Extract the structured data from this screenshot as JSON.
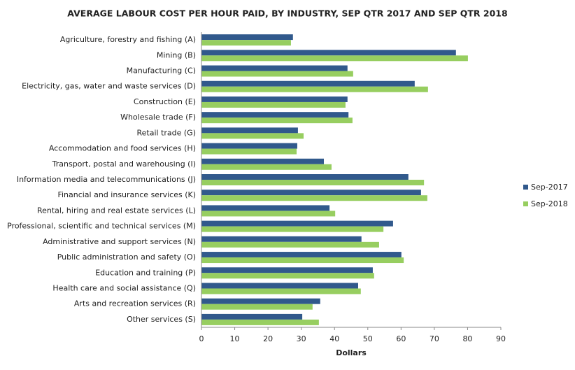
{
  "chart_data": {
    "type": "hbar",
    "title": "AVERAGE LABOUR COST PER HOUR PAID, BY INDUSTRY, SEP QTR 2017 AND SEP QTR 2018",
    "xlabel": "Dollars",
    "categories": [
      "Agriculture, forestry and fishing (A)",
      "Mining (B)",
      "Manufacturing (C)",
      "Electricity, gas, water and waste services (D)",
      "Construction (E)",
      "Wholesale trade (F)",
      "Retail trade (G)",
      "Accommodation and food services (H)",
      "Transport, postal and warehousing (I)",
      "Information media and telecommunications (J)",
      "Financial and insurance services (K)",
      "Rental, hiring and real estate services (L)",
      "Professional, scientific and technical services (M)",
      "Administrative and support services (N)",
      "Public administration and safety (O)",
      "Education and training (P)",
      "Health care and social assistance (Q)",
      "Arts and recreation services (R)",
      "Other services (S)"
    ],
    "series": [
      {
        "name": "Sep-2017",
        "color": "#31598c",
        "values": [
          27.5,
          76.5,
          43.9,
          64.1,
          43.9,
          44.2,
          29.0,
          28.8,
          36.8,
          62.2,
          66.0,
          38.5,
          57.6,
          48.1,
          60.1,
          51.5,
          47.1,
          35.7,
          30.3
        ]
      },
      {
        "name": "Sep-2018",
        "color": "#97ce60",
        "values": [
          26.9,
          80.1,
          45.6,
          68.1,
          43.3,
          45.4,
          30.7,
          28.6,
          39.1,
          66.9,
          67.9,
          40.2,
          54.7,
          53.4,
          60.8,
          51.9,
          47.9,
          33.4,
          35.3
        ]
      }
    ],
    "xlim": [
      0,
      90
    ],
    "xticks": [
      0,
      10,
      20,
      30,
      40,
      50,
      60,
      70,
      80,
      90
    ],
    "legend": "right"
  }
}
